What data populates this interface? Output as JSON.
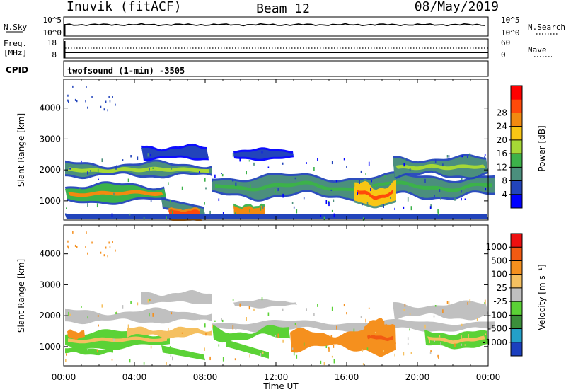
{
  "header": {
    "station": "Inuvik (fitACF)",
    "beam": "Beam 12",
    "date": "08/May/2019"
  },
  "nsky_panel": {
    "left_label": "N.Sky",
    "right_label": "N.Search",
    "left_ticks": [
      "10^5",
      "10^0"
    ],
    "right_ticks": [
      "10^5",
      "10^0"
    ]
  },
  "freq_panel": {
    "label_line1": "Freq.",
    "label_line2": "[MHz]",
    "left_ticks": [
      "18",
      "8"
    ],
    "right_ticks": [
      "60",
      "0"
    ],
    "right_label": "Nave"
  },
  "cpid": {
    "label": "CPID",
    "text": "twofsound (1-min) -3505"
  },
  "chart_data": [
    {
      "type": "heatmap",
      "name": "power",
      "ylabel": "Slant Range [km]",
      "y_ticks": [
        "1000",
        "2000",
        "3000",
        "4000"
      ],
      "colorbar_label": "Power [dB]",
      "colorbar_ticks": [
        "4",
        "8",
        "12",
        "16",
        "20",
        "24",
        "28"
      ],
      "colorbar_colors": [
        "#0000ff",
        "#2244bb",
        "#4b8f7d",
        "#3cb24a",
        "#a6d836",
        "#f8c614",
        "#f28a10",
        "#ff4a0a",
        "#ff0000"
      ]
    },
    {
      "type": "heatmap",
      "name": "velocity",
      "ylabel": "Slant Range [km]",
      "y_ticks": [
        "1000",
        "2000",
        "3000",
        "4000"
      ],
      "colorbar_label": "Velocity [m s⁻¹]",
      "colorbar_ticks": [
        "1000",
        "500",
        "100",
        "25",
        "-25",
        "-100",
        "-500",
        "-1000"
      ],
      "colorbar_colors": [
        "#1b3fbf",
        "#23a0c8",
        "#3b8f3b",
        "#5bd236",
        "#c0c0c0",
        "#f5c060",
        "#f5901e",
        "#f25a12",
        "#ee1010"
      ]
    }
  ],
  "x_axis": {
    "ticks": [
      "00:00",
      "04:00",
      "08:00",
      "12:00",
      "16:00",
      "20:00",
      "00:00"
    ],
    "label": "Time UT"
  }
}
